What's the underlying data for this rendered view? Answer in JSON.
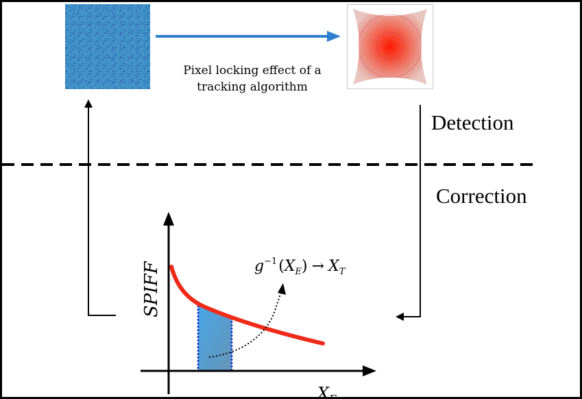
{
  "caption": {
    "line1": "Pixel locking effect of a",
    "line2": "tracking algorithm"
  },
  "labels": {
    "detection": "Detection",
    "correction": "Correction"
  },
  "graph": {
    "y_axis_label": "SPIFF",
    "x_axis_label_base": "X",
    "x_axis_label_sub": "E",
    "equation": {
      "g": "g",
      "exponent": "−1",
      "open_paren": "(",
      "x": "X",
      "x_sub": "E",
      "close_paren": ")",
      "arrow": "→",
      "result": "X",
      "result_sub": "T"
    }
  },
  "colors": {
    "frame": "#000000",
    "arrow_blue": "#2f7fd0",
    "input_image": "#3e8fc4",
    "curve_red": "#ef2a18",
    "shaded_region": "#4ea7df",
    "dashed_line": "#000000"
  },
  "icons": {
    "input_image": "noisy-pixel-image",
    "output_image": "pixel-locking-histogram"
  }
}
